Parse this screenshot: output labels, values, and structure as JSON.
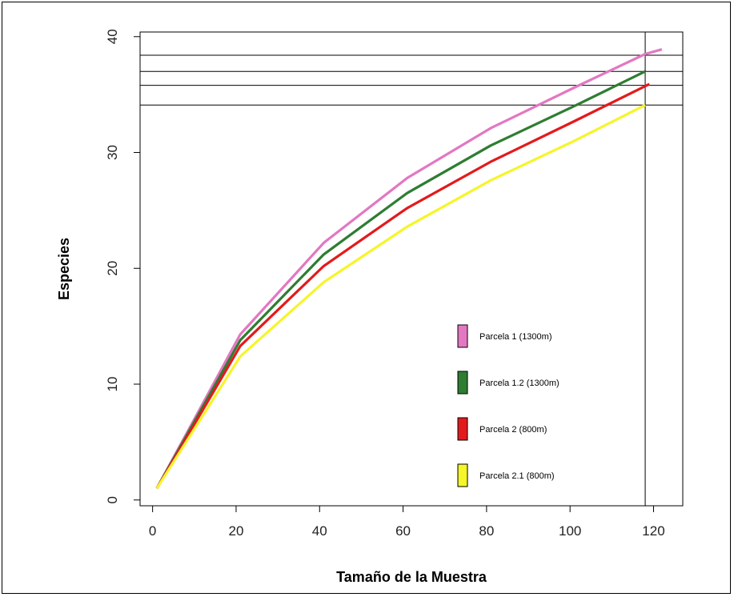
{
  "chart_data": {
    "type": "line",
    "xlabel": "Tamaño de la Muestra",
    "ylabel": "Especies",
    "xlim": [
      -3,
      127
    ],
    "ylim": [
      -0.5,
      40.4
    ],
    "xticks": [
      0,
      20,
      40,
      60,
      80,
      100,
      120
    ],
    "yticks": [
      0,
      10,
      20,
      30,
      40
    ],
    "grid": false,
    "legend_position": "right",
    "series": [
      {
        "name": "Parcela 1 (1300m)",
        "color": "#e377c2",
        "x": [
          1,
          21,
          41,
          61,
          81,
          101,
          118,
          122
        ],
        "y": [
          1,
          14.3,
          22.2,
          27.8,
          32.1,
          35.6,
          38.5,
          38.9
        ]
      },
      {
        "name": "Parcela 1.2 (1300m)",
        "color": "#2e7d32",
        "x": [
          1,
          21,
          41,
          61,
          81,
          101,
          118
        ],
        "y": [
          1,
          13.8,
          21.2,
          26.5,
          30.6,
          34.0,
          37.0
        ]
      },
      {
        "name": "Parcela 2 (800m)",
        "color": "#e31a1c",
        "x": [
          1,
          21,
          41,
          61,
          81,
          101,
          119
        ],
        "y": [
          1,
          13.3,
          20.2,
          25.2,
          29.2,
          32.7,
          35.9
        ]
      },
      {
        "name": "Parcela 2.1 (800m)",
        "color": "#f5f52a",
        "x": [
          1,
          21,
          41,
          61,
          81,
          101,
          118
        ],
        "y": [
          1,
          12.4,
          18.8,
          23.6,
          27.6,
          31.0,
          34.1
        ]
      }
    ],
    "reference_lines": {
      "horizontal": [
        38.4,
        37.0,
        35.8,
        34.1
      ],
      "vertical": [
        118
      ]
    }
  }
}
